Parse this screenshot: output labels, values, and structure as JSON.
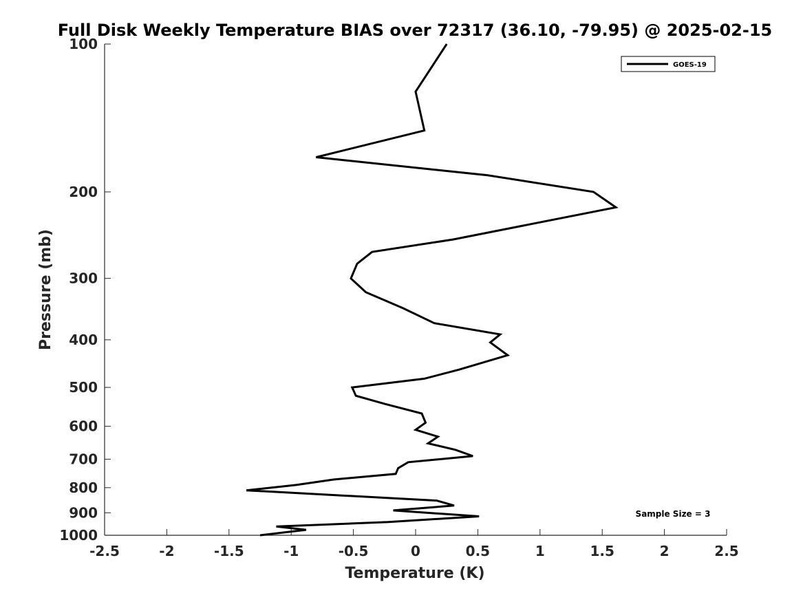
{
  "chart_data": {
    "type": "line",
    "title": "Full Disk Weekly Temperature BIAS over 72317 (36.10, -79.95) @ 2025-02-15",
    "xlabel": "Temperature (K)",
    "ylabel": "Pressure (mb)",
    "xlim": [
      -2.5,
      2.5
    ],
    "ylim": [
      100,
      1000
    ],
    "y_scale": "log",
    "y_reversed": true,
    "x_ticks": [
      -2.5,
      -2,
      -1.5,
      -1,
      -0.5,
      0,
      0.5,
      1,
      1.5,
      2,
      2.5
    ],
    "x_tick_labels": [
      "-2.5",
      "-2",
      "-1.5",
      "-1",
      "-0.5",
      "0",
      "0.5",
      "1",
      "1.5",
      "2",
      "2.5"
    ],
    "y_ticks": [
      100,
      200,
      300,
      400,
      500,
      600,
      700,
      800,
      900,
      1000
    ],
    "y_tick_labels": [
      "100",
      "200",
      "300",
      "400",
      "500",
      "600",
      "700",
      "800",
      "900",
      "1000"
    ],
    "grid": false,
    "legend_position": "top-right",
    "annotation": "Sample Size = 3",
    "series": [
      {
        "name": "GOES-19",
        "color": "#000000",
        "points": [
          [
            0.25,
            100
          ],
          [
            0.0,
            125
          ],
          [
            0.07,
            150
          ],
          [
            -0.8,
            170
          ],
          [
            0.58,
            185
          ],
          [
            1.43,
            200
          ],
          [
            1.61,
            215
          ],
          [
            0.3,
            250
          ],
          [
            -0.35,
            265
          ],
          [
            -0.47,
            280
          ],
          [
            -0.52,
            300
          ],
          [
            -0.4,
            320
          ],
          [
            -0.1,
            345
          ],
          [
            0.15,
            370
          ],
          [
            0.68,
            390
          ],
          [
            0.6,
            405
          ],
          [
            0.74,
            430
          ],
          [
            0.35,
            460
          ],
          [
            0.07,
            480
          ],
          [
            -0.51,
            500
          ],
          [
            -0.48,
            520
          ],
          [
            -0.25,
            540
          ],
          [
            0.05,
            565
          ],
          [
            0.08,
            590
          ],
          [
            0.0,
            610
          ],
          [
            0.18,
            630
          ],
          [
            0.1,
            650
          ],
          [
            0.32,
            670
          ],
          [
            0.46,
            690
          ],
          [
            -0.06,
            710
          ],
          [
            -0.14,
            730
          ],
          [
            -0.16,
            750
          ],
          [
            -0.66,
            770
          ],
          [
            -0.96,
            790
          ],
          [
            -1.36,
            810
          ],
          [
            0.17,
            850
          ],
          [
            0.31,
            870
          ],
          [
            -0.18,
            890
          ],
          [
            0.51,
            915
          ],
          [
            -0.22,
            940
          ],
          [
            -1.12,
            960
          ],
          [
            -0.88,
            975
          ],
          [
            -1.25,
            1000
          ]
        ]
      }
    ]
  }
}
